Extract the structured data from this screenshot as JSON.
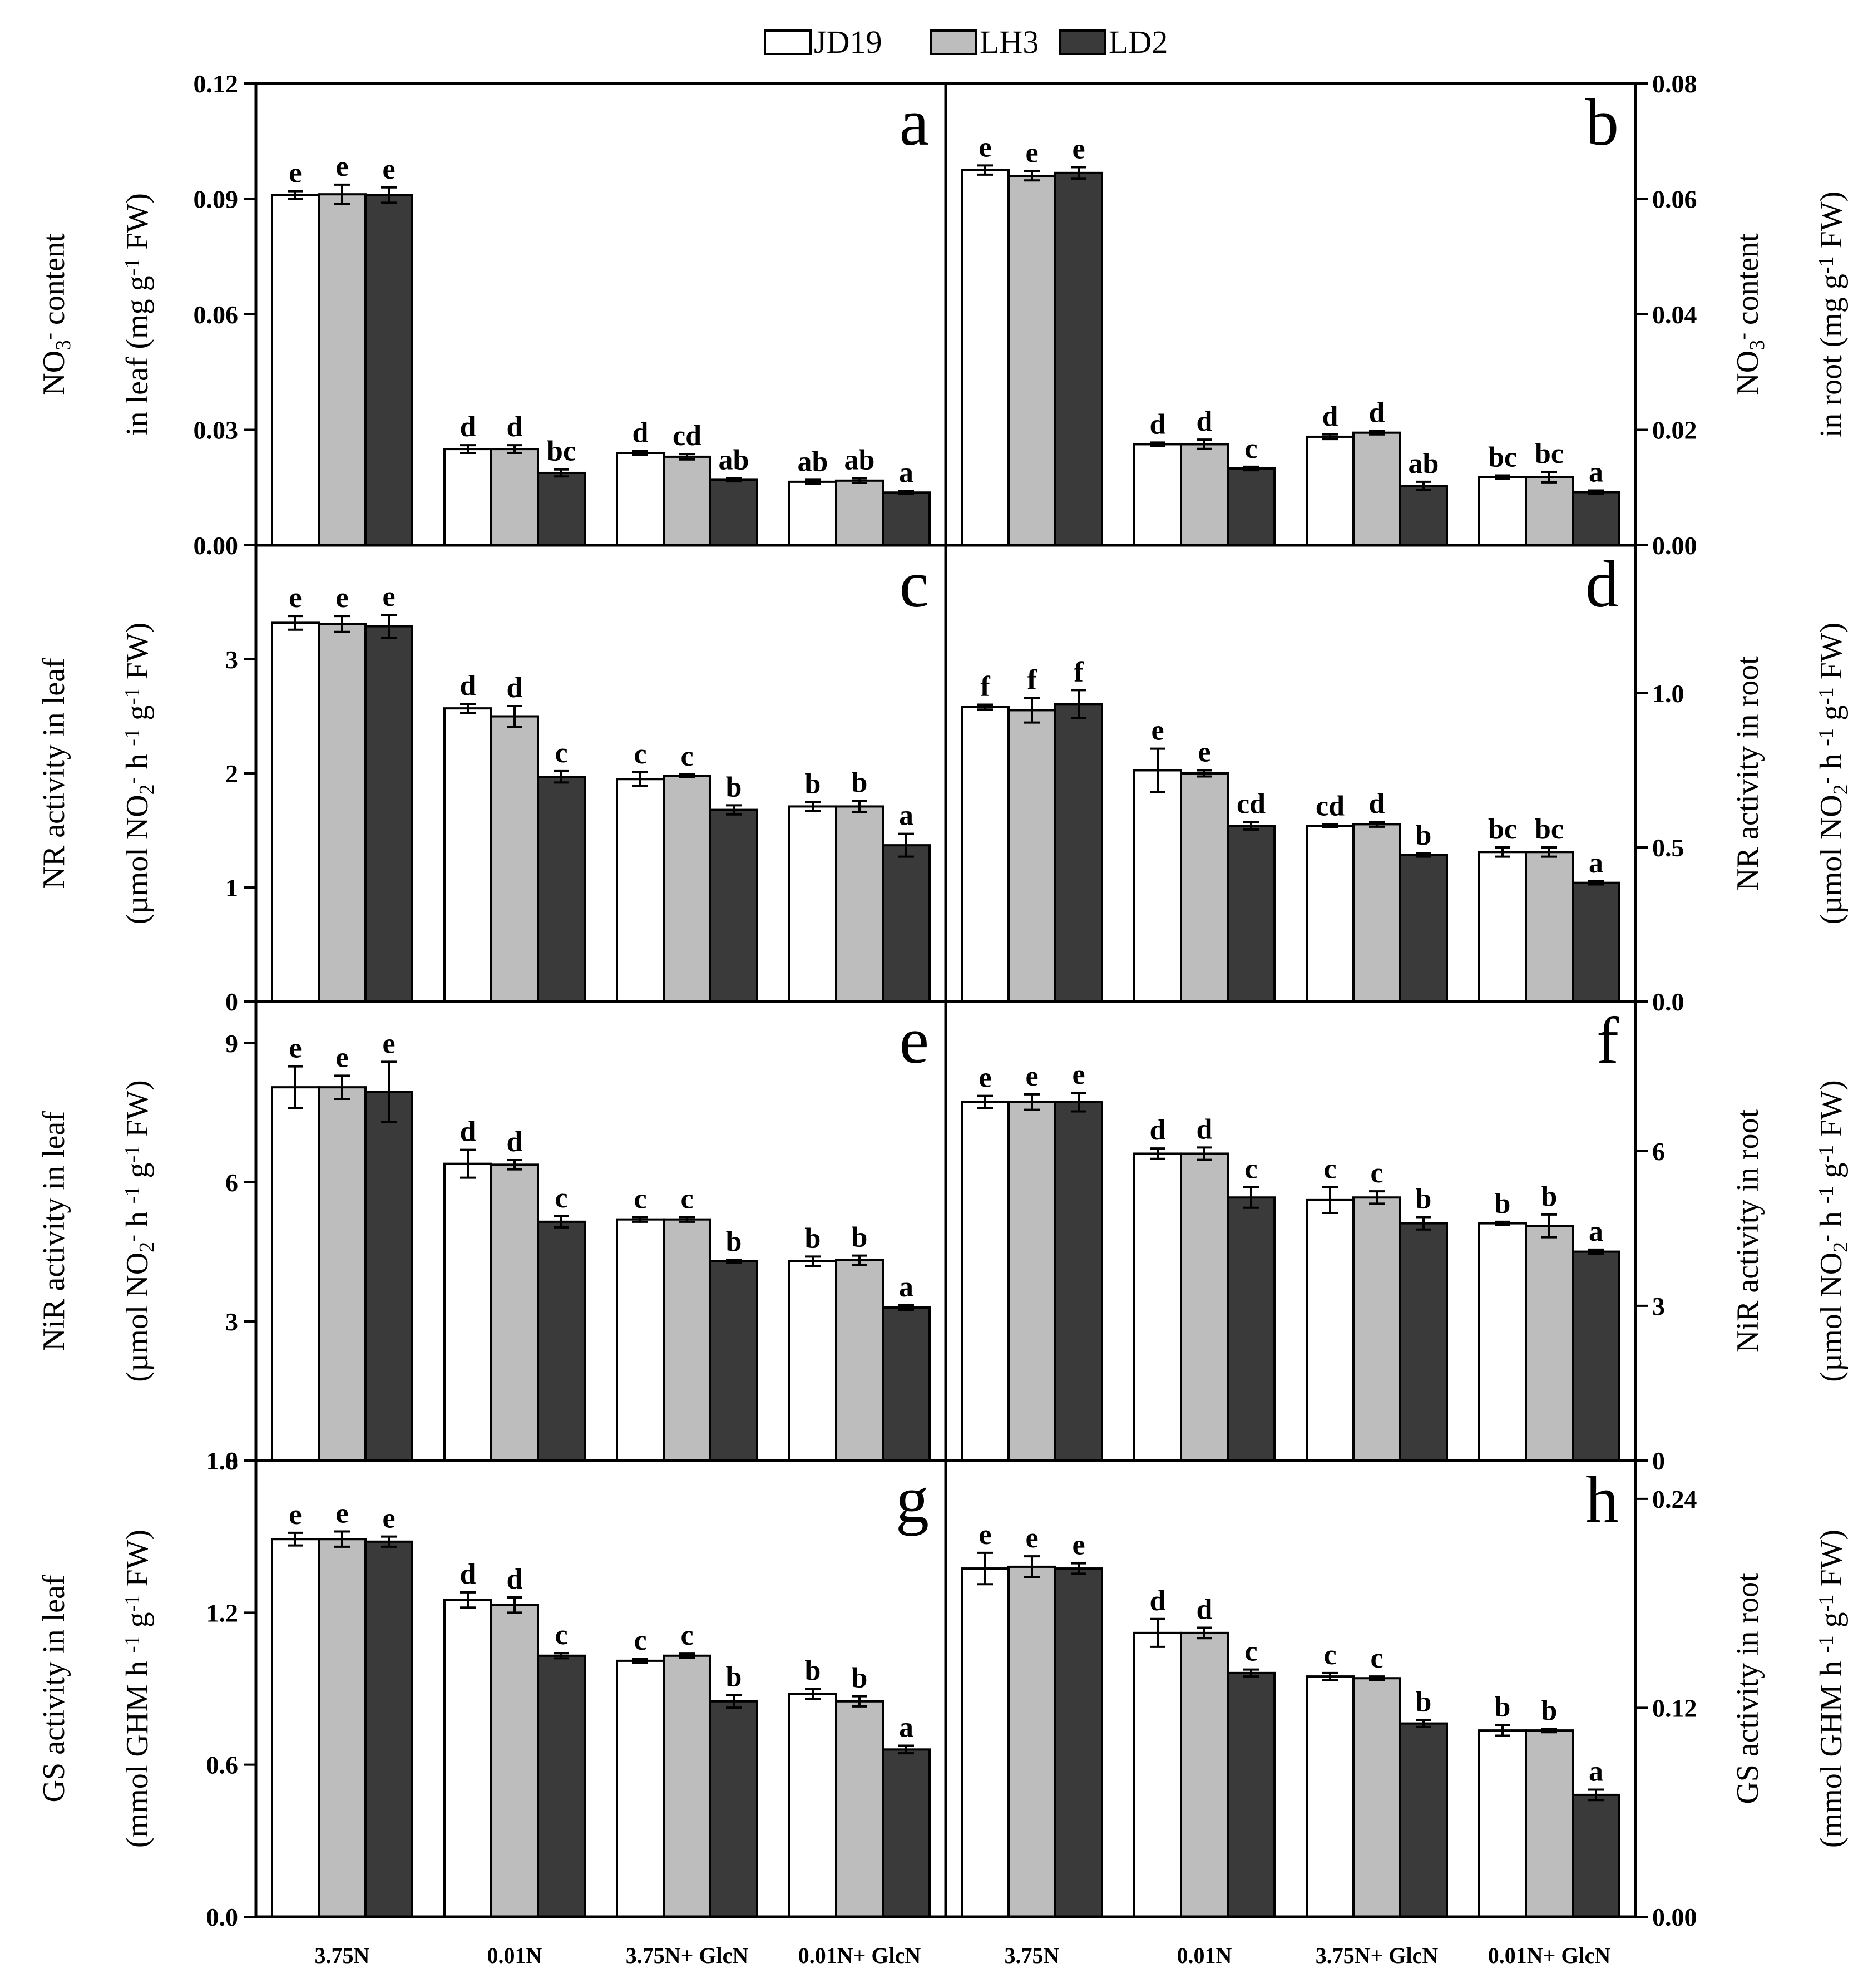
{
  "legend": {
    "items": [
      {
        "name": "JD19",
        "color": "#ffffff"
      },
      {
        "name": "LH3",
        "color": "#bdbdbd"
      },
      {
        "name": "LD2",
        "color": "#3a3a3a"
      }
    ]
  },
  "chart_data": {
    "type": "bar",
    "categories": [
      "3.75N",
      "0.01N",
      "3.75N+ GlcN",
      "0.01N+ GlcN"
    ],
    "series_names": [
      "JD19",
      "LH3",
      "LD2"
    ],
    "panels": [
      {
        "letter": "a",
        "ylabel": [
          "NO3- content",
          "in leaf (mg g-1 FW)"
        ],
        "ylim": [
          0,
          0.12
        ],
        "yticks": [
          0.0,
          0.03,
          0.06,
          0.09,
          0.12
        ],
        "tick_labels": [
          "0.00",
          "0.03",
          "0.06",
          "0.09",
          "0.12"
        ],
        "series": [
          {
            "name": "JD19",
            "values": [
              0.091,
              0.025,
              0.024,
              0.0165
            ],
            "errors": [
              0.001,
              0.001,
              0.0005,
              0.0005
            ]
          },
          {
            "name": "LH3",
            "values": [
              0.0912,
              0.025,
              0.023,
              0.0168
            ],
            "errors": [
              0.0025,
              0.001,
              0.0007,
              0.0006
            ]
          },
          {
            "name": "LD2",
            "values": [
              0.091,
              0.0188,
              0.017,
              0.0137
            ],
            "errors": [
              0.002,
              0.0009,
              0.0004,
              0.0004
            ]
          }
        ],
        "letters": [
          [
            "e",
            "e",
            "e"
          ],
          [
            "d",
            "d",
            "bc"
          ],
          [
            "d",
            "cd",
            "ab"
          ],
          [
            "ab",
            "ab",
            "a"
          ]
        ]
      },
      {
        "letter": "b",
        "ylabel": [
          "NO3- content",
          "in root (mg g-1 FW)"
        ],
        "ylim": [
          0,
          0.08
        ],
        "yticks": [
          0.0,
          0.02,
          0.04,
          0.06,
          0.08
        ],
        "tick_labels": [
          "0.00",
          "0.02",
          "0.04",
          "0.06",
          "0.08"
        ],
        "series": [
          {
            "name": "JD19",
            "values": [
              0.065,
              0.0175,
              0.0188,
              0.0118
            ],
            "errors": [
              0.0008,
              0.0003,
              0.0004,
              0.0003
            ]
          },
          {
            "name": "LH3",
            "values": [
              0.064,
              0.0175,
              0.0195,
              0.0118
            ],
            "errors": [
              0.0008,
              0.0008,
              0.0003,
              0.0009
            ]
          },
          {
            "name": "LD2",
            "values": [
              0.0645,
              0.0133,
              0.0103,
              0.0092
            ],
            "errors": [
              0.001,
              0.0003,
              0.0007,
              0.0003
            ]
          }
        ],
        "letters": [
          [
            "e",
            "e",
            "e"
          ],
          [
            "d",
            "d",
            "c"
          ],
          [
            "d",
            "d",
            "ab"
          ],
          [
            "bc",
            "bc",
            "a"
          ]
        ]
      },
      {
        "letter": "c",
        "ylabel": [
          "NR activity in leaf",
          "(µmol NO2- h-1 g-1 FW)"
        ],
        "ylim": [
          0,
          4
        ],
        "yticks": [
          0,
          1,
          2,
          3
        ],
        "tick_labels": [
          "0",
          "1",
          "2",
          "3"
        ],
        "series": [
          {
            "name": "JD19",
            "values": [
              3.32,
              2.57,
              1.95,
              1.71
            ],
            "errors": [
              0.06,
              0.04,
              0.06,
              0.04
            ]
          },
          {
            "name": "LH3",
            "values": [
              3.31,
              2.5,
              1.98,
              1.71
            ],
            "errors": [
              0.07,
              0.09,
              0.01,
              0.05
            ]
          },
          {
            "name": "LD2",
            "values": [
              3.29,
              1.97,
              1.68,
              1.37
            ],
            "errors": [
              0.1,
              0.05,
              0.04,
              0.1
            ]
          }
        ],
        "letters": [
          [
            "e",
            "e",
            "e"
          ],
          [
            "d",
            "d",
            "c"
          ],
          [
            "c",
            "c",
            "b"
          ],
          [
            "b",
            "b",
            "a"
          ]
        ]
      },
      {
        "letter": "d",
        "ylabel": [
          "NR activity in root",
          "(µmol NO2- h-1 g-1 FW)"
        ],
        "ylim": [
          0,
          1.48
        ],
        "yticks": [
          0.0,
          0.5,
          1.0
        ],
        "tick_labels": [
          "0.0",
          "0.5",
          "1.0"
        ],
        "series": [
          {
            "name": "JD19",
            "values": [
              0.955,
              0.75,
              0.57,
              0.485
            ],
            "errors": [
              0.008,
              0.07,
              0.005,
              0.015
            ]
          },
          {
            "name": "LH3",
            "values": [
              0.945,
              0.74,
              0.575,
              0.485
            ],
            "errors": [
              0.04,
              0.01,
              0.008,
              0.015
            ]
          },
          {
            "name": "LD2",
            "values": [
              0.965,
              0.57,
              0.475,
              0.385
            ],
            "errors": [
              0.045,
              0.012,
              0.005,
              0.005
            ]
          }
        ],
        "letters": [
          [
            "f",
            "f",
            "f"
          ],
          [
            "e",
            "e",
            "cd"
          ],
          [
            "cd",
            "d",
            "b"
          ],
          [
            "bc",
            "bc",
            "a"
          ]
        ]
      },
      {
        "letter": "e",
        "ylabel": [
          "NiR activity in leaf",
          "(µmol NO2- h-1 g-1 FW)"
        ],
        "ylim": [
          0,
          9.9
        ],
        "yticks": [
          0,
          3,
          6,
          9
        ],
        "tick_labels": [
          "0",
          "3",
          "6",
          "9"
        ],
        "series": [
          {
            "name": "JD19",
            "values": [
              8.05,
              6.4,
              5.2,
              4.3
            ],
            "errors": [
              0.45,
              0.3,
              0.05,
              0.1
            ]
          },
          {
            "name": "LH3",
            "values": [
              8.05,
              6.38,
              5.2,
              4.32
            ],
            "errors": [
              0.25,
              0.1,
              0.05,
              0.1
            ]
          },
          {
            "name": "LD2",
            "values": [
              7.95,
              5.15,
              4.3,
              3.3
            ],
            "errors": [
              0.65,
              0.12,
              0.03,
              0.05
            ]
          }
        ],
        "letters": [
          [
            "e",
            "e",
            "e"
          ],
          [
            "d",
            "d",
            "c"
          ],
          [
            "c",
            "c",
            "b"
          ],
          [
            "b",
            "b",
            "a"
          ]
        ]
      },
      {
        "letter": "f",
        "ylabel": [
          "NiR activity in root",
          "(µmol NO2- h-1 g-1 FW)"
        ],
        "ylim": [
          0,
          8.9
        ],
        "yticks": [
          0,
          3,
          6
        ],
        "tick_labels": [
          "0",
          "3",
          "6"
        ],
        "series": [
          {
            "name": "JD19",
            "values": [
              6.95,
              5.95,
              5.05,
              4.6
            ],
            "errors": [
              0.12,
              0.1,
              0.25,
              0.03
            ]
          },
          {
            "name": "LH3",
            "values": [
              6.95,
              5.95,
              5.1,
              4.55
            ],
            "errors": [
              0.15,
              0.12,
              0.12,
              0.22
            ]
          },
          {
            "name": "LD2",
            "values": [
              6.95,
              5.1,
              4.6,
              4.05
            ],
            "errors": [
              0.18,
              0.2,
              0.12,
              0.04
            ]
          }
        ],
        "letters": [
          [
            "e",
            "e",
            "e"
          ],
          [
            "d",
            "d",
            "c"
          ],
          [
            "c",
            "c",
            "b"
          ],
          [
            "b",
            "b",
            "a"
          ]
        ]
      },
      {
        "letter": "g",
        "ylabel": [
          "GS activity in leaf",
          "(mmol GHM h-1 g-1 FW)"
        ],
        "ylim": [
          0,
          1.8
        ],
        "yticks": [
          0.0,
          0.6,
          1.2,
          1.8
        ],
        "tick_labels": [
          "0.0",
          "0.6",
          "1.2",
          "1.8"
        ],
        "series": [
          {
            "name": "JD19",
            "values": [
              1.49,
              1.25,
              1.01,
              0.88
            ],
            "errors": [
              0.025,
              0.03,
              0.008,
              0.02
            ]
          },
          {
            "name": "LH3",
            "values": [
              1.49,
              1.23,
              1.03,
              0.85
            ],
            "errors": [
              0.03,
              0.03,
              0.008,
              0.02
            ]
          },
          {
            "name": "LD2",
            "values": [
              1.48,
              1.03,
              0.85,
              0.66
            ],
            "errors": [
              0.02,
              0.01,
              0.025,
              0.015
            ]
          }
        ],
        "letters": [
          [
            "e",
            "e",
            "e"
          ],
          [
            "d",
            "d",
            "c"
          ],
          [
            "c",
            "c",
            "b"
          ],
          [
            "b",
            "b",
            "a"
          ]
        ]
      },
      {
        "letter": "h",
        "ylabel": [
          "GS activity in root",
          "(mmol GHM h-1 g-1 FW)"
        ],
        "ylim": [
          0,
          0.262
        ],
        "yticks": [
          0.0,
          0.12,
          0.24
        ],
        "tick_labels": [
          "0.00",
          "0.12",
          "0.24"
        ],
        "series": [
          {
            "name": "JD19",
            "values": [
              0.2,
              0.163,
              0.138,
              0.107
            ],
            "errors": [
              0.009,
              0.008,
              0.002,
              0.003
            ]
          },
          {
            "name": "LH3",
            "values": [
              0.201,
              0.163,
              0.137,
              0.107
            ],
            "errors": [
              0.006,
              0.003,
              0.001,
              0.001
            ]
          },
          {
            "name": "LD2",
            "values": [
              0.2,
              0.14,
              0.111,
              0.07
            ],
            "errors": [
              0.003,
              0.002,
              0.002,
              0.003
            ]
          }
        ],
        "letters": [
          [
            "e",
            "e",
            "e"
          ],
          [
            "d",
            "d",
            "c"
          ],
          [
            "c",
            "c",
            "b"
          ],
          [
            "b",
            "b",
            "a"
          ]
        ]
      }
    ]
  }
}
